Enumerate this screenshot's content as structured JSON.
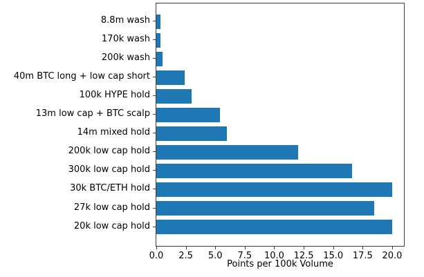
{
  "chart_data": {
    "type": "bar",
    "orientation": "horizontal",
    "title": "",
    "xlabel": "Points per 100k Volume",
    "ylabel": "",
    "categories": [
      "8.8m wash",
      "170k wash",
      "200k wash",
      "40m BTC long + low cap short",
      "100k HYPE hold",
      "13m low cap + BTC scalp",
      "14m mixed hold",
      "200k low cap hold",
      "300k low cap hold",
      "30k BTC/ETH hold",
      "27k low cap hold",
      "20k low cap hold"
    ],
    "values": [
      0.35,
      0.35,
      0.5,
      2.4,
      3.0,
      5.4,
      6.0,
      12.0,
      16.6,
      20.0,
      18.5,
      20.0
    ],
    "xlim": [
      0,
      21
    ],
    "xticks": [
      0.0,
      2.5,
      5.0,
      7.5,
      10.0,
      12.5,
      15.0,
      17.5,
      20.0
    ],
    "xtick_labels": [
      "0.0",
      "2.5",
      "5.0",
      "7.5",
      "10.0",
      "12.5",
      "15.0",
      "17.5",
      "20.0"
    ],
    "bar_color": "#1f77b4",
    "grid": false,
    "legend": null
  }
}
